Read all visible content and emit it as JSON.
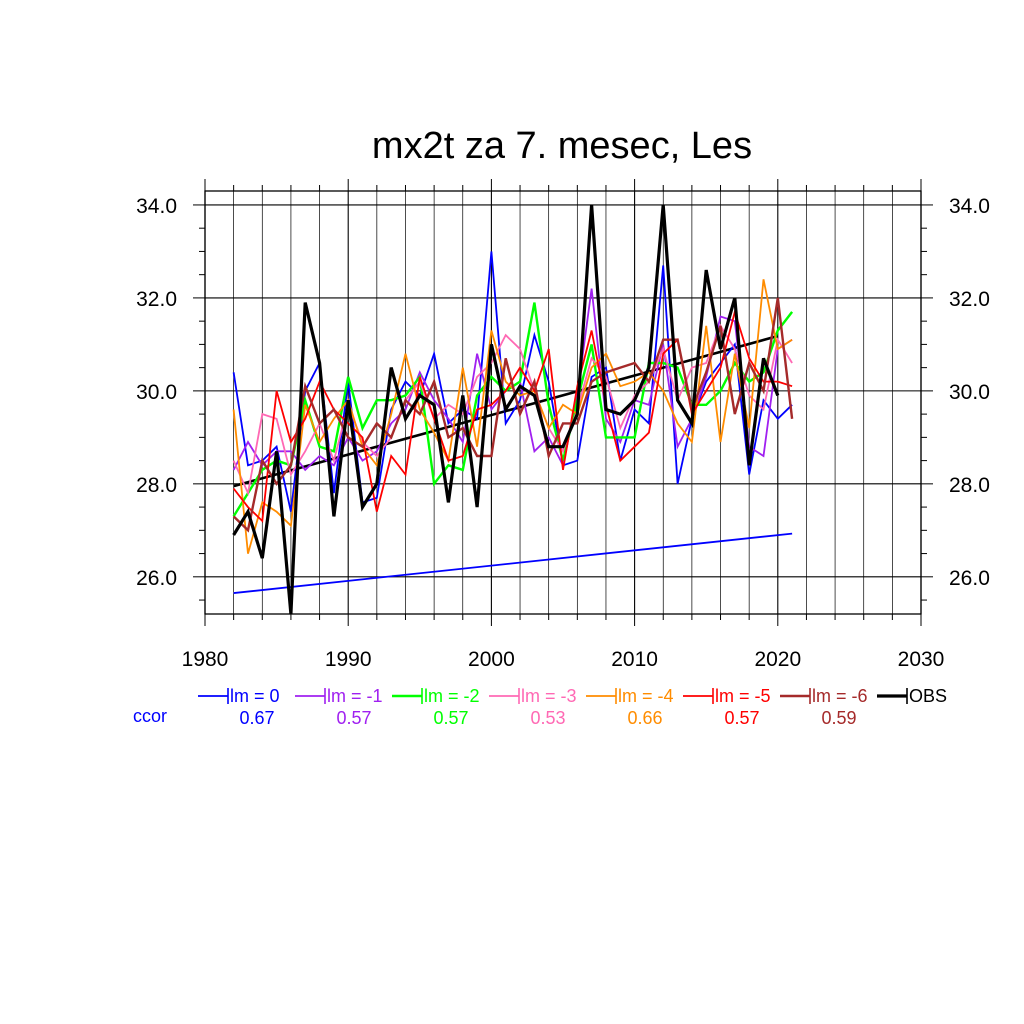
{
  "chart_data": {
    "type": "line",
    "title": "mx2t za 7. mesec, Les",
    "xlim": [
      1980,
      2030
    ],
    "ylim": [
      25.2,
      34.3
    ],
    "x_ticks": [
      1980,
      1990,
      2000,
      2010,
      2020,
      2030
    ],
    "x_tick_labels": [
      "1980",
      "1990",
      "2000",
      "2010",
      "2020",
      "2030"
    ],
    "y_ticks": [
      26,
      28,
      30,
      32,
      34
    ],
    "y_tick_labels": [
      "26.0",
      "28.0",
      "30.0",
      "32.0",
      "34.0"
    ],
    "grid": true,
    "legend_position": "bottom",
    "ccor_label": "ccor",
    "years": [
      1982,
      1983,
      1984,
      1985,
      1986,
      1987,
      1988,
      1989,
      1990,
      1991,
      1992,
      1993,
      1994,
      1995,
      1996,
      1997,
      1998,
      1999,
      2000,
      2001,
      2002,
      2003,
      2004,
      2005,
      2006,
      2007,
      2008,
      2009,
      2010,
      2011,
      2012,
      2013,
      2014,
      2015,
      2016,
      2017,
      2018,
      2019,
      2020,
      2021
    ],
    "series": [
      {
        "name": "lm = 0",
        "color": "#0000ff",
        "ccor": "0.67",
        "width": 1.8,
        "values": [
          30.4,
          28.4,
          28.5,
          28.8,
          27.4,
          30.0,
          30.6,
          27.8,
          30.2,
          27.6,
          27.7,
          29.6,
          30.2,
          29.9,
          30.8,
          29.3,
          29.6,
          29.4,
          33.0,
          29.3,
          29.8,
          31.2,
          30.2,
          28.4,
          28.5,
          30.3,
          30.5,
          28.5,
          29.6,
          29.3,
          32.7,
          28.0,
          29.4,
          30.2,
          30.6,
          31.0,
          28.2,
          29.8,
          29.4,
          29.7
        ]
      },
      {
        "name": "lm = -1",
        "color": "#a020f0",
        "ccor": "0.57",
        "width": 1.8,
        "values": [
          28.3,
          28.9,
          28.4,
          28.7,
          28.7,
          28.3,
          28.6,
          28.4,
          29.0,
          28.5,
          28.7,
          29.3,
          29.6,
          30.4,
          29.8,
          29.4,
          28.9,
          30.8,
          29.6,
          30.0,
          30.2,
          28.7,
          29.0,
          28.4,
          29.9,
          32.2,
          29.4,
          28.9,
          29.8,
          29.7,
          31.0,
          28.8,
          29.4,
          30.3,
          31.6,
          31.5,
          28.8,
          28.6,
          30.9,
          31.1
        ]
      },
      {
        "name": "lm = -2",
        "color": "#00ff00",
        "ccor": "0.57",
        "width": 2.4,
        "values": [
          27.3,
          27.8,
          28.3,
          28.5,
          28.4,
          29.8,
          28.8,
          28.7,
          30.3,
          29.2,
          29.8,
          29.8,
          29.9,
          30.3,
          28.0,
          28.4,
          28.3,
          29.9,
          30.3,
          30.0,
          30.2,
          31.9,
          29.7,
          28.5,
          29.8,
          31.0,
          29.0,
          29.0,
          29.0,
          30.6,
          30.6,
          30.5,
          29.7,
          29.7,
          30.0,
          30.6,
          30.2,
          30.4,
          31.3,
          31.7
        ]
      },
      {
        "name": "lm = -3",
        "color": "#ff69b4",
        "ccor": "0.53",
        "width": 1.8,
        "values": [
          28.5,
          27.8,
          29.5,
          29.4,
          28.2,
          28.7,
          29.3,
          28.5,
          29.7,
          28.9,
          28.6,
          29.0,
          29.8,
          30.2,
          29.4,
          29.7,
          29.5,
          30.3,
          30.6,
          31.2,
          30.9,
          30.0,
          29.2,
          28.7,
          29.6,
          30.7,
          30.3,
          29.2,
          29.9,
          30.2,
          30.9,
          29.8,
          30.5,
          30.6,
          31.4,
          30.9,
          29.9,
          29.6,
          31.1,
          30.6
        ]
      },
      {
        "name": "lm = -4",
        "color": "#ff8c00",
        "ccor": "0.66",
        "width": 1.8,
        "values": [
          29.6,
          26.5,
          27.6,
          27.4,
          27.1,
          29.7,
          28.9,
          29.4,
          29.8,
          28.8,
          28.4,
          29.5,
          30.8,
          29.6,
          29.1,
          28.5,
          30.5,
          28.8,
          31.3,
          30.2,
          29.9,
          30.0,
          29.2,
          29.7,
          29.5,
          30.5,
          30.8,
          30.1,
          30.2,
          30.4,
          30.0,
          29.3,
          28.9,
          31.4,
          28.9,
          30.8,
          29.2,
          32.4,
          30.9,
          31.1
        ]
      },
      {
        "name": "lm = -5",
        "color": "#ff0000",
        "ccor": "0.57",
        "width": 1.8,
        "values": [
          27.9,
          27.5,
          27.2,
          30.0,
          28.9,
          29.4,
          30.2,
          29.6,
          29.3,
          29.0,
          27.4,
          28.6,
          28.2,
          30.3,
          29.4,
          28.5,
          28.6,
          29.6,
          29.7,
          30.0,
          30.5,
          30.0,
          30.9,
          28.3,
          30.1,
          31.3,
          29.7,
          28.5,
          28.8,
          29.1,
          30.8,
          31.1,
          29.5,
          30.0,
          30.5,
          31.7,
          30.7,
          30.2,
          30.2,
          30.1
        ]
      },
      {
        "name": "lm = -6",
        "color": "#a52a2a",
        "ccor": "0.59",
        "width": 2.4,
        "values": [
          27.3,
          27.0,
          28.5,
          28.0,
          28.4,
          30.1,
          29.3,
          29.6,
          29.0,
          28.8,
          29.3,
          29.0,
          29.8,
          29.5,
          30.2,
          29.0,
          29.2,
          28.6,
          28.6,
          30.7,
          29.5,
          30.2,
          28.6,
          29.3,
          29.3,
          30.2,
          30.4,
          30.5,
          30.6,
          30.2,
          31.1,
          31.1,
          29.6,
          30.4,
          31.4,
          29.5,
          30.6,
          30.0,
          32.0,
          29.4
        ]
      },
      {
        "name": "OBS",
        "color": "#000000",
        "ccor": "",
        "width": 3.2,
        "values": [
          26.9,
          27.4,
          26.4,
          28.7,
          25.2,
          31.9,
          30.6,
          27.3,
          29.8,
          27.5,
          28.0,
          30.5,
          29.4,
          29.9,
          29.7,
          27.6,
          29.9,
          27.5,
          31.0,
          29.6,
          30.1,
          29.9,
          28.8,
          28.8,
          29.5,
          34.0,
          29.6,
          29.5,
          29.8,
          30.5,
          34.0,
          29.8,
          29.3,
          32.6,
          30.9,
          32.0,
          28.4,
          30.7,
          29.9,
          null
        ]
      }
    ],
    "trend_lines": [
      {
        "color": "#000000",
        "x": [
          1982,
          2020
        ],
        "y": [
          27.95,
          31.18
        ]
      },
      {
        "color": "#0000ff",
        "x": [
          1982,
          2021
        ],
        "y": [
          25.65,
          26.93
        ]
      }
    ]
  }
}
